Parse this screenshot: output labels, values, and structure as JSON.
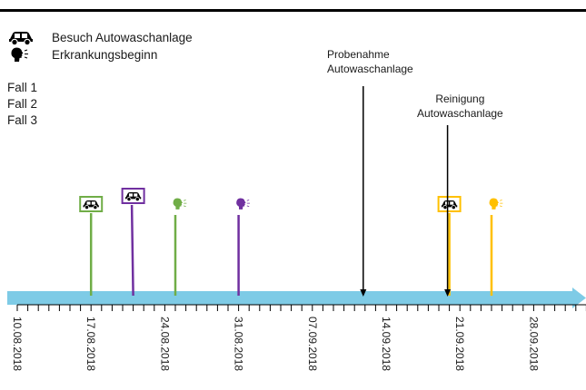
{
  "legend": [
    {
      "icon": "car-icon",
      "label": "Besuch Autowaschanlage"
    },
    {
      "icon": "sick-head-icon",
      "label": "Erkrankungsbeginn"
    }
  ],
  "cases": [
    {
      "label": "Fall 1",
      "color": "#70ad47"
    },
    {
      "label": "Fall 2",
      "color": "#7030a0"
    },
    {
      "label": "Fall 3",
      "color": "#ffc000"
    }
  ],
  "annotations": {
    "sampling_line1": "Probenahme",
    "sampling_line2": "Autowaschanlage",
    "cleaning_line1": "Reinigung",
    "cleaning_line2": "Autowaschanlage"
  },
  "timeline": {
    "color": "#7ecbe6",
    "start_date": "10.08.2018",
    "day_count": 56,
    "date_labels": [
      "10.08.2018",
      "17.08.2018",
      "24.08.2018",
      "31.08.2018",
      "07.09.2018",
      "14.09.2018",
      "21.09.2018",
      "28.09.2018"
    ]
  },
  "events": [
    {
      "case": "Fall 1",
      "type": "car",
      "date": "17.08.2018"
    },
    {
      "case": "Fall 2",
      "type": "car",
      "date": "21.08.2018"
    },
    {
      "case": "Fall 1",
      "type": "sick",
      "date": "25.08.2018"
    },
    {
      "case": "Fall 2",
      "type": "sick",
      "date": "31.08.2018"
    },
    {
      "case": "Fall 3",
      "type": "car",
      "date": "20.09.2018"
    },
    {
      "case": "Fall 3",
      "type": "sick",
      "date": "24.09.2018"
    }
  ],
  "markers": [
    {
      "label": "Probenahme Autowaschanlage",
      "date": "12.09.2018"
    },
    {
      "label": "Reinigung Autowaschanlage",
      "date": "20.09.2018"
    }
  ]
}
